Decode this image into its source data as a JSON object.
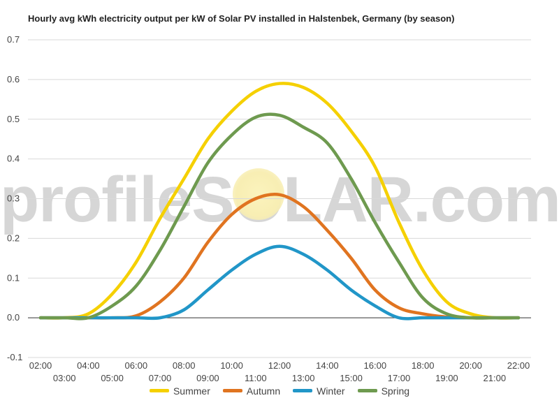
{
  "chart_data": {
    "type": "line",
    "title": "Hourly avg kWh electricity output per kW of Solar PV installed in Halstenbek, Germany (by season)",
    "xlabel": "",
    "ylabel": "",
    "x": [
      "02:00",
      "03:00",
      "04:00",
      "05:00",
      "06:00",
      "07:00",
      "08:00",
      "09:00",
      "10:00",
      "11:00",
      "12:00",
      "13:00",
      "14:00",
      "15:00",
      "16:00",
      "17:00",
      "18:00",
      "19:00",
      "20:00",
      "21:00",
      "22:00"
    ],
    "ylim": [
      -0.1,
      0.7
    ],
    "yticks": [
      "0.7",
      "0.6",
      "0.5",
      "0.4",
      "0.3",
      "0.2",
      "0.1",
      "0.0",
      "-0.1"
    ],
    "grid": true,
    "legend_position": "bottom",
    "series": [
      {
        "name": "Summer",
        "color": "#f5d000",
        "values": [
          0,
          0,
          0.01,
          0.06,
          0.14,
          0.25,
          0.35,
          0.45,
          0.52,
          0.57,
          0.59,
          0.58,
          0.54,
          0.47,
          0.38,
          0.24,
          0.12,
          0.04,
          0.01,
          0,
          0
        ]
      },
      {
        "name": "Autumn",
        "color": "#e07420",
        "values": [
          0,
          0,
          0,
          0,
          0.005,
          0.04,
          0.1,
          0.19,
          0.26,
          0.3,
          0.31,
          0.28,
          0.22,
          0.15,
          0.07,
          0.025,
          0.01,
          0.002,
          0,
          0,
          0
        ]
      },
      {
        "name": "Winter",
        "color": "#2196c8",
        "values": [
          0,
          0,
          0,
          0,
          0,
          0,
          0.02,
          0.07,
          0.12,
          0.16,
          0.18,
          0.16,
          0.12,
          0.07,
          0.03,
          0,
          0,
          0,
          0,
          0,
          0
        ]
      },
      {
        "name": "Spring",
        "color": "#6e9a4f",
        "values": [
          0,
          0,
          0,
          0.03,
          0.08,
          0.17,
          0.28,
          0.39,
          0.46,
          0.505,
          0.51,
          0.48,
          0.44,
          0.35,
          0.24,
          0.14,
          0.05,
          0.01,
          0,
          0,
          0
        ]
      }
    ]
  },
  "watermark": "profileSOLAR.com"
}
